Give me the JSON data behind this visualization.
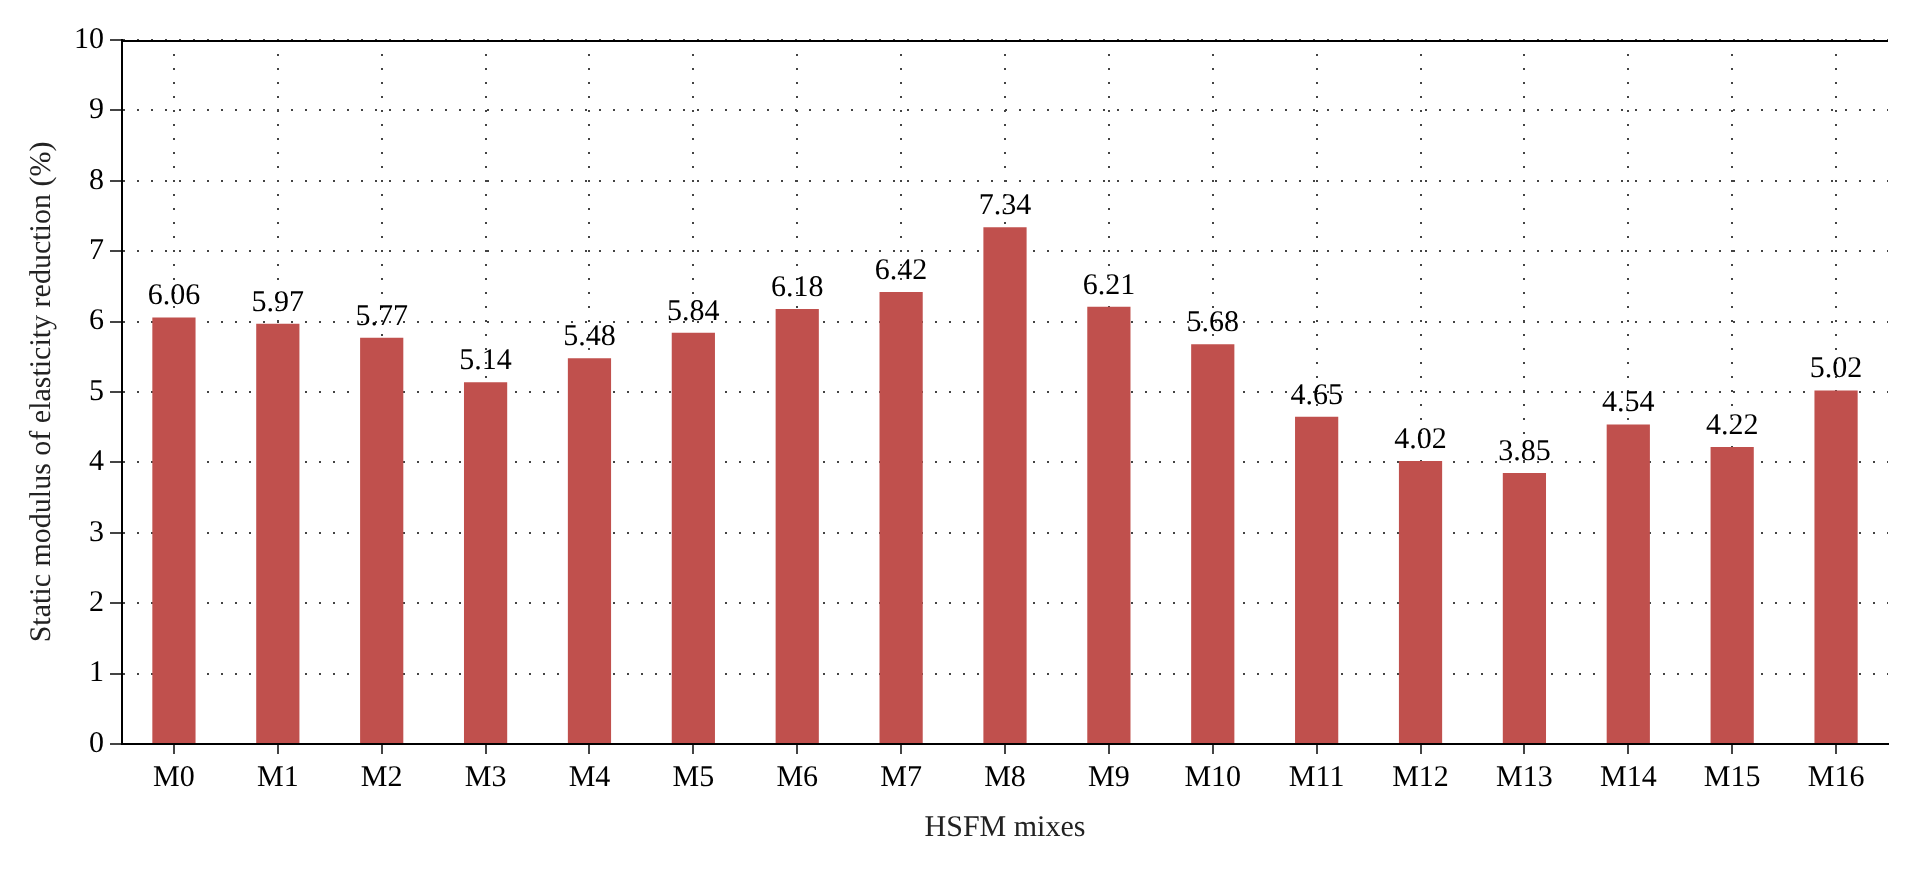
{
  "chart_data": {
    "type": "bar",
    "xlabel": "HSFM mixes",
    "ylabel": "Static modulus of elasticity reduction (%)",
    "categories": [
      "M0",
      "M1",
      "M2",
      "M3",
      "M4",
      "M5",
      "M6",
      "M7",
      "M8",
      "M9",
      "M10",
      "M11",
      "M12",
      "M13",
      "M14",
      "M15",
      "M16"
    ],
    "values": [
      6.06,
      5.97,
      5.77,
      5.14,
      5.48,
      5.84,
      6.18,
      6.42,
      7.34,
      6.21,
      5.68,
      4.65,
      4.02,
      3.85,
      4.54,
      4.22,
      5.02
    ],
    "color": "#c0504d",
    "ylim": [
      0,
      10
    ],
    "yticks": [
      0,
      1,
      2,
      3,
      4,
      5,
      6,
      7,
      8,
      9,
      10
    ],
    "grid": true,
    "data_labels": true,
    "legend": false
  }
}
